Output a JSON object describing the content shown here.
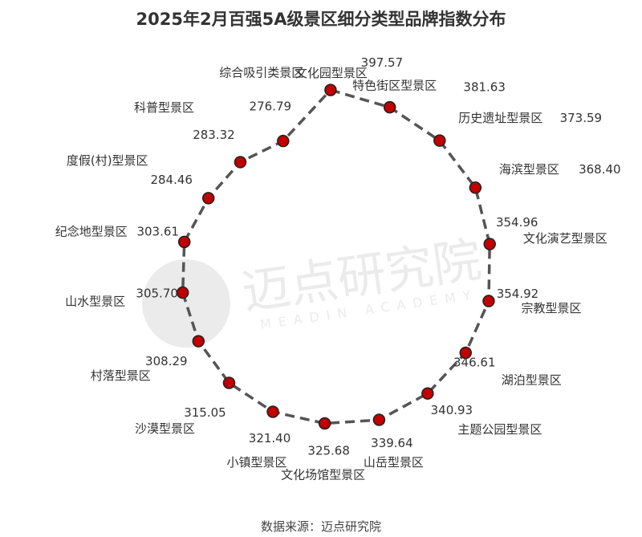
{
  "chart_data": {
    "type": "scatter",
    "subtype": "polar-dashed-loop",
    "title": "2025年2月百强5A级景区细分类型品牌指数分布",
    "categories": [
      "文化园型景区",
      "特色街区型景区",
      "历史遗址型景区",
      "海滨型景区",
      "文化演艺型景区",
      "宗教型景区",
      "湖泊型景区",
      "主题公园型景区",
      "山岳型景区",
      "文化场馆型景区",
      "小镇型景区",
      "沙漠型景区",
      "村落型景区",
      "山水型景区",
      "纪念地型景区",
      "度假(村)型景区",
      "科普型景区",
      "综合吸引类景区"
    ],
    "values": [
      397.57,
      381.63,
      373.59,
      368.4,
      354.96,
      354.92,
      346.61,
      340.93,
      339.64,
      325.68,
      321.4,
      315.05,
      308.29,
      305.7,
      303.61,
      284.46,
      283.32,
      276.79
    ],
    "value_labels": [
      "397.57",
      "381.63",
      "373.59",
      "368.40",
      "354.96",
      "354.92",
      "346.61",
      "340.93",
      "339.64",
      "325.68",
      "321.40",
      "315.05",
      "308.29",
      "305.70",
      "303.61",
      "284.46",
      "283.32",
      "276.79"
    ],
    "grid": false,
    "legend": "none",
    "colors": {
      "marker": "#c00000",
      "marker_edge": "#222222",
      "line": "#555555"
    }
  },
  "source": "数据来源：迈点研究院",
  "watermark": {
    "cn": "迈点研究院",
    "en": "MEADIN ACADEMY"
  }
}
